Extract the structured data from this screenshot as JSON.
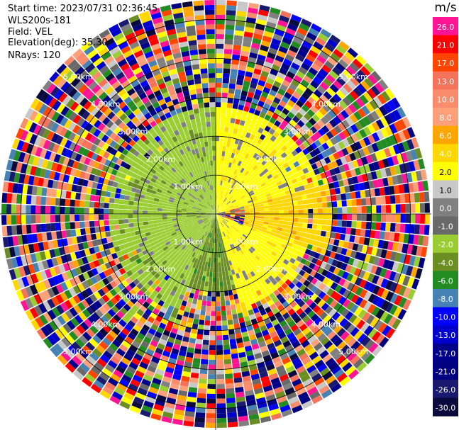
{
  "header": {
    "start_time": "Start time: 2023/07/31 02:36:45",
    "station": "WLS200s-181",
    "field": "Field: VEL",
    "elevation": "Elevation(deg): 35.30",
    "nrays": "NRays: 120"
  },
  "chart_data": {
    "type": "heatmap",
    "projection": "polar (PPI)",
    "n_rays": 120,
    "range_ring_labels": [
      "1.00km",
      "2.00km",
      "3.00km",
      "4.00km",
      "5.00km"
    ],
    "range_max_km": 5.5,
    "colorbar": {
      "unit": "m/s",
      "tick_labels": [
        "26.0",
        "21.0",
        "17.0",
        "13.0",
        "10.0",
        "8.0",
        "6.0",
        "4.0",
        "2.0",
        "1.0",
        "0.0",
        "-1.0",
        "-2.0",
        "-4.0",
        "-6.0",
        "-8.0",
        "-10.0",
        "-13.0",
        "-17.0",
        "-21.0",
        "-26.0",
        "-30.0"
      ],
      "colors": [
        "#ff1493",
        "#ff0000",
        "#ff4500",
        "#f5735a",
        "#fa8c6e",
        "#ffa07a",
        "#ffa500",
        "#ffd700",
        "#ffff00",
        "#c8c8c8",
        "#808080",
        "#696969",
        "#9acd32",
        "#6b8e23",
        "#228b22",
        "#4682b4",
        "#0000ff",
        "#0000cd",
        "#00008b",
        "#000080",
        "#191970",
        "#0a0a3c"
      ]
    },
    "summary_regions": [
      {
        "azimuth_deg": [
          0,
          75
        ],
        "range_km": [
          0,
          2.8
        ],
        "velocity_ms": 2.0
      },
      {
        "azimuth_deg": [
          75,
          110
        ],
        "range_km": [
          0.8,
          3.0
        ],
        "velocity_ms": 4.0
      },
      {
        "azimuth_deg": [
          110,
          165
        ],
        "range_km": [
          0,
          2.5
        ],
        "velocity_ms": 2.0
      },
      {
        "azimuth_deg": [
          165,
          200
        ],
        "range_km": [
          0,
          2.0
        ],
        "velocity_ms": -4.0
      },
      {
        "azimuth_deg": [
          200,
          360
        ],
        "range_km": [
          0,
          2.8
        ],
        "velocity_ms": -2.0
      }
    ]
  }
}
